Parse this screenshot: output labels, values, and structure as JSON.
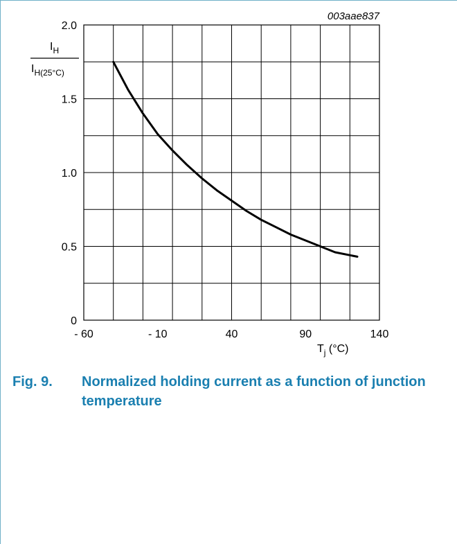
{
  "figure": {
    "code": "003aae837",
    "number": "Fig. 9.",
    "title": "Normalized holding current as a function of junction temperature"
  },
  "chart_data": {
    "type": "line",
    "title": "",
    "xlabel": {
      "main": "T",
      "sub": "j",
      "unit": " (°C)"
    },
    "ylabel": {
      "num_main": "I",
      "num_sub": "H",
      "den_main": "I",
      "den_sub": "H(25°C)"
    },
    "xlim": [
      -60,
      140
    ],
    "ylim": [
      0,
      2.0
    ],
    "x_ticks": [
      -60,
      -10,
      40,
      90,
      140
    ],
    "x_tick_labels": [
      "- 60",
      "- 10",
      "40",
      "90",
      "140"
    ],
    "y_ticks": [
      0,
      0.5,
      1.0,
      1.5,
      2.0
    ],
    "y_tick_labels": [
      "0",
      "0.5",
      "1.0",
      "1.5",
      "2.0"
    ],
    "x_grid_step": 20,
    "y_grid_step": 0.25,
    "grid": true,
    "series": [
      {
        "values": [
          {
            "x": -40,
            "y": 1.75
          },
          {
            "x": -30,
            "y": 1.56
          },
          {
            "x": -20,
            "y": 1.4
          },
          {
            "x": -10,
            "y": 1.26
          },
          {
            "x": 0,
            "y": 1.15
          },
          {
            "x": 10,
            "y": 1.05
          },
          {
            "x": 20,
            "y": 0.96
          },
          {
            "x": 30,
            "y": 0.88
          },
          {
            "x": 40,
            "y": 0.81
          },
          {
            "x": 50,
            "y": 0.74
          },
          {
            "x": 60,
            "y": 0.68
          },
          {
            "x": 70,
            "y": 0.63
          },
          {
            "x": 80,
            "y": 0.58
          },
          {
            "x": 90,
            "y": 0.54
          },
          {
            "x": 100,
            "y": 0.5
          },
          {
            "x": 110,
            "y": 0.46
          },
          {
            "x": 125,
            "y": 0.43
          }
        ]
      }
    ]
  }
}
